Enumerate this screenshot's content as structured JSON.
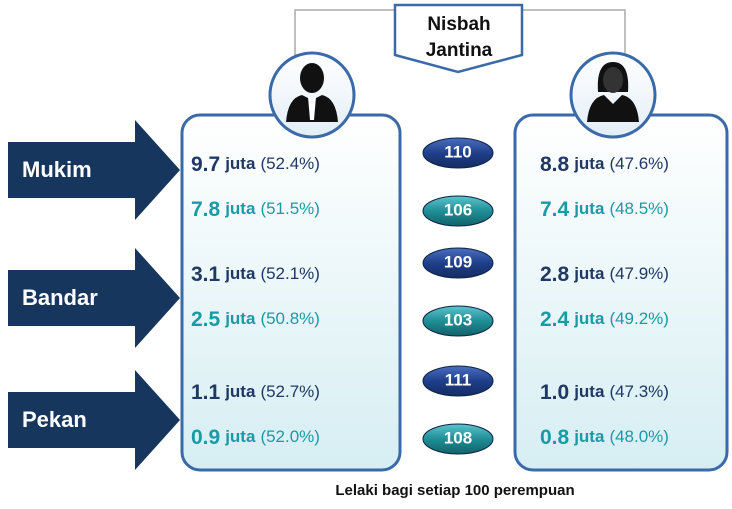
{
  "title": "Nisbah Jantina",
  "unit": "juta",
  "footer": "Lelaki bagi setiap 100 perempuan",
  "rows": [
    {
      "label": "Mukim",
      "lines": [
        {
          "male": "9.7",
          "male_pct": "(52.4%)",
          "ratio": 110,
          "female": "8.8",
          "female_pct": "(47.6%)"
        },
        {
          "male": "7.8",
          "male_pct": "(51.5%)",
          "ratio": 106,
          "female": "7.4",
          "female_pct": "(48.5%)"
        }
      ]
    },
    {
      "label": "Bandar",
      "lines": [
        {
          "male": "3.1",
          "male_pct": "(52.1%)",
          "ratio": 109,
          "female": "2.8",
          "female_pct": "(47.9%)"
        },
        {
          "male": "2.5",
          "male_pct": "(50.8%)",
          "ratio": 103,
          "female": "2.4",
          "female_pct": "(49.2%)"
        }
      ]
    },
    {
      "label": "Pekan",
      "lines": [
        {
          "male": "1.1",
          "male_pct": "(52.7%)",
          "ratio": 111,
          "female": "1.0",
          "female_pct": "(47.3%)"
        },
        {
          "male": "0.9",
          "male_pct": "(52.0%)",
          "ratio": 108,
          "female": "0.8",
          "female_pct": "(48.0%)"
        }
      ]
    }
  ]
}
